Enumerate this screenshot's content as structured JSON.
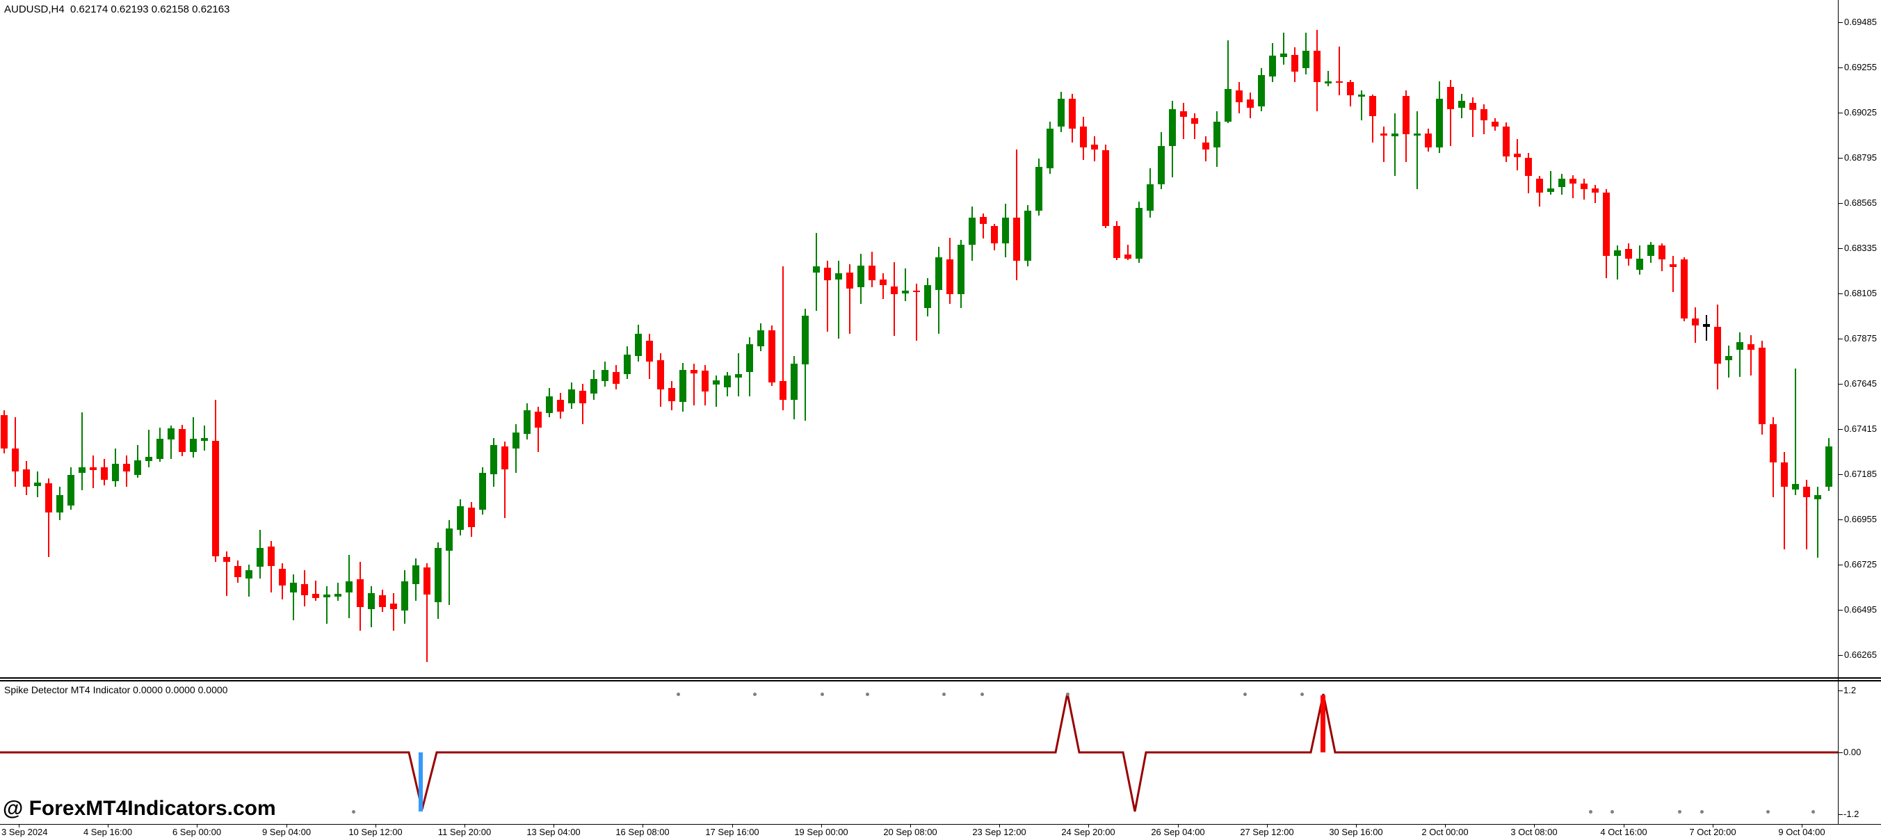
{
  "header": {
    "symbol_title": "AUDUSD,H4  0.62174 0.62193 0.62158 0.62163"
  },
  "watermark": {
    "text": "@ ForexMT4Indicators.com"
  },
  "price_axis": {
    "labels": [
      "0.69485",
      "0.69255",
      "0.69025",
      "0.68795",
      "0.68565",
      "0.68335",
      "0.68105",
      "0.67875",
      "0.67645",
      "0.67415",
      "0.67185",
      "0.66955",
      "0.66725",
      "0.66495",
      "0.66265"
    ]
  },
  "time_axis": {
    "labels": [
      "3 Sep 2024",
      "4 Sep 16:00",
      "6 Sep 00:00",
      "9 Sep 04:00",
      "10 Sep 12:00",
      "11 Sep 20:00",
      "13 Sep 04:00",
      "16 Sep 08:00",
      "17 Sep 16:00",
      "19 Sep 00:00",
      "20 Sep 08:00",
      "23 Sep 12:00",
      "24 Sep 20:00",
      "26 Sep 04:00",
      "27 Sep 12:00",
      "30 Sep 16:00",
      "2 Oct 00:00",
      "3 Oct 08:00",
      "4 Oct 16:00",
      "7 Oct 20:00",
      "9 Oct 04:00"
    ]
  },
  "indicator_pane": {
    "title": "Spike Detector MT4 Indicator 0.0000 0.0000 0.0000",
    "axis_labels": [
      {
        "text": "1.2",
        "value": 1.2
      },
      {
        "text": "0.00",
        "value": 0.0
      },
      {
        "text": "-1.2",
        "value": -1.2
      }
    ]
  },
  "chart_data": {
    "type": "candlestick",
    "title": "AUDUSD H4 with Spike Detector MT4 Indicator",
    "symbol": "AUDUSD",
    "timeframe": "H4",
    "quote": {
      "open": "0.62174",
      "high": "0.62193",
      "low": "0.62158",
      "close": "0.62163"
    },
    "ylim": [
      0.66265,
      0.69485
    ],
    "grid": false,
    "colors": {
      "up": "#008000",
      "down": "#FF0000",
      "neutral": "#000000",
      "spike_line": "#990000",
      "buy_marker": "#3399FF",
      "sell_marker": "#FF0000",
      "dot": "#808080"
    },
    "bars": [
      [
        0.67487,
        0.67511,
        0.67292,
        0.67317,
        "r"
      ],
      [
        0.67317,
        0.67476,
        0.67122,
        0.672,
        "r"
      ],
      [
        0.6721,
        0.67253,
        0.6708,
        0.67122,
        "r"
      ],
      [
        0.67126,
        0.672,
        0.67069,
        0.67143,
        "g"
      ],
      [
        0.6714,
        0.67165,
        0.66764,
        0.66991,
        "r"
      ],
      [
        0.66991,
        0.67122,
        0.66952,
        0.6708,
        "g"
      ],
      [
        0.67026,
        0.67221,
        0.67005,
        0.67182,
        "g"
      ],
      [
        0.67193,
        0.67501,
        0.67104,
        0.67221,
        "g"
      ],
      [
        0.67221,
        0.67281,
        0.67115,
        0.67207,
        "r"
      ],
      [
        0.67221,
        0.67264,
        0.67129,
        0.67157,
        "r"
      ],
      [
        0.6715,
        0.67317,
        0.67122,
        0.67239,
        "g"
      ],
      [
        0.67239,
        0.67281,
        0.67122,
        0.672,
        "r"
      ],
      [
        0.67182,
        0.67334,
        0.67168,
        0.67257,
        "g"
      ],
      [
        0.67253,
        0.67412,
        0.67221,
        0.67274,
        "g"
      ],
      [
        0.67264,
        0.67423,
        0.67249,
        0.67366,
        "g"
      ],
      [
        0.67363,
        0.67434,
        0.67264,
        0.67419,
        "g"
      ],
      [
        0.67416,
        0.67437,
        0.67278,
        0.67299,
        "r"
      ],
      [
        0.67299,
        0.67476,
        0.67271,
        0.67366,
        "g"
      ],
      [
        0.67356,
        0.67434,
        0.67306,
        0.6737,
        "g"
      ],
      [
        0.67356,
        0.67563,
        0.6674,
        0.66768,
        "r"
      ],
      [
        0.66764,
        0.66793,
        0.66566,
        0.6674,
        "r"
      ],
      [
        0.66718,
        0.66747,
        0.66633,
        0.66662,
        "r"
      ],
      [
        0.66655,
        0.66726,
        0.66563,
        0.66697,
        "g"
      ],
      [
        0.66715,
        0.66903,
        0.66655,
        0.6681,
        "g"
      ],
      [
        0.66818,
        0.66846,
        0.66584,
        0.66718,
        "r"
      ],
      [
        0.66704,
        0.66733,
        0.66549,
        0.66619,
        "r"
      ],
      [
        0.66584,
        0.66676,
        0.66442,
        0.66633,
        "g"
      ],
      [
        0.66626,
        0.66697,
        0.66513,
        0.6657,
        "r"
      ],
      [
        0.66577,
        0.66644,
        0.66541,
        0.66556,
        "r"
      ],
      [
        0.66559,
        0.66616,
        0.66425,
        0.66573,
        "g"
      ],
      [
        0.66563,
        0.66633,
        0.66541,
        0.66577,
        "g"
      ],
      [
        0.66584,
        0.66775,
        0.66453,
        0.66641,
        "g"
      ],
      [
        0.66651,
        0.6674,
        0.66389,
        0.6651,
        "r"
      ],
      [
        0.66499,
        0.66616,
        0.66407,
        0.6658,
        "g"
      ],
      [
        0.6657,
        0.66598,
        0.66485,
        0.6651,
        "r"
      ],
      [
        0.66527,
        0.6658,
        0.66389,
        0.66499,
        "r"
      ],
      [
        0.66492,
        0.66697,
        0.66425,
        0.66641,
        "g"
      ],
      [
        0.66626,
        0.66757,
        0.66541,
        0.66722,
        "g"
      ],
      [
        0.66711,
        0.66733,
        0.6623,
        0.66573,
        "r"
      ],
      [
        0.66534,
        0.66839,
        0.66449,
        0.6681,
        "g"
      ],
      [
        0.66796,
        0.66952,
        0.6652,
        0.6691,
        "g"
      ],
      [
        0.66903,
        0.67058,
        0.66874,
        0.67023,
        "g"
      ],
      [
        0.67016,
        0.67044,
        0.66867,
        0.66917,
        "r"
      ],
      [
        0.67005,
        0.67221,
        0.6698,
        0.67193,
        "g"
      ],
      [
        0.67186,
        0.6737,
        0.67122,
        0.67334,
        "g"
      ],
      [
        0.67327,
        0.67352,
        0.66963,
        0.6721,
        "r"
      ],
      [
        0.67317,
        0.67441,
        0.67193,
        0.67398,
        "g"
      ],
      [
        0.67391,
        0.67547,
        0.67363,
        0.67511,
        "g"
      ],
      [
        0.67504,
        0.67529,
        0.67299,
        0.67423,
        "r"
      ],
      [
        0.67497,
        0.67625,
        0.67476,
        0.67582,
        "g"
      ],
      [
        0.67564,
        0.676,
        0.67469,
        0.67504,
        "r"
      ],
      [
        0.67547,
        0.67653,
        0.67518,
        0.67618,
        "g"
      ],
      [
        0.67611,
        0.67646,
        0.67441,
        0.67547,
        "r"
      ],
      [
        0.67596,
        0.67717,
        0.67564,
        0.67671,
        "g"
      ],
      [
        0.6766,
        0.67759,
        0.67632,
        0.67717,
        "g"
      ],
      [
        0.67706,
        0.67741,
        0.67618,
        0.67646,
        "r"
      ],
      [
        0.67695,
        0.67837,
        0.67671,
        0.67795,
        "g"
      ],
      [
        0.67787,
        0.67947,
        0.67759,
        0.67901,
        "g"
      ],
      [
        0.67865,
        0.67901,
        0.67671,
        0.67759,
        "r"
      ],
      [
        0.67766,
        0.67802,
        0.67529,
        0.67618,
        "r"
      ],
      [
        0.67625,
        0.6766,
        0.67511,
        0.67557,
        "r"
      ],
      [
        0.67554,
        0.67752,
        0.67504,
        0.67717,
        "g"
      ],
      [
        0.67717,
        0.67749,
        0.67536,
        0.67699,
        "r"
      ],
      [
        0.67713,
        0.67741,
        0.67536,
        0.67607,
        "r"
      ],
      [
        0.67642,
        0.67688,
        0.67529,
        0.67664,
        "g"
      ],
      [
        0.67628,
        0.67706,
        0.67582,
        0.67688,
        "g"
      ],
      [
        0.67678,
        0.67802,
        0.67582,
        0.67695,
        "g"
      ],
      [
        0.67706,
        0.67883,
        0.67582,
        0.67848,
        "g"
      ],
      [
        0.67837,
        0.67954,
        0.67812,
        0.67918,
        "g"
      ],
      [
        0.67918,
        0.67943,
        0.67635,
        0.67653,
        "r"
      ],
      [
        0.6766,
        0.68244,
        0.67511,
        0.67564,
        "r"
      ],
      [
        0.67564,
        0.67787,
        0.67465,
        0.67749,
        "g"
      ],
      [
        0.67746,
        0.68028,
        0.67458,
        0.67993,
        "g"
      ],
      [
        0.68212,
        0.68414,
        0.68017,
        0.68244,
        "g"
      ],
      [
        0.68237,
        0.68273,
        0.67911,
        0.68173,
        "r"
      ],
      [
        0.68177,
        0.68273,
        0.67876,
        0.68209,
        "g"
      ],
      [
        0.68212,
        0.68255,
        0.67901,
        0.68131,
        "r"
      ],
      [
        0.68138,
        0.68308,
        0.68053,
        0.68248,
        "g"
      ],
      [
        0.68248,
        0.68318,
        0.68138,
        0.68173,
        "r"
      ],
      [
        0.68177,
        0.68209,
        0.68078,
        0.68149,
        "r"
      ],
      [
        0.68142,
        0.68265,
        0.6789,
        0.68103,
        "r"
      ],
      [
        0.68106,
        0.68233,
        0.68067,
        0.6812,
        "g"
      ],
      [
        0.6812,
        0.68156,
        0.67865,
        0.68113,
        "r"
      ],
      [
        0.68032,
        0.68184,
        0.67989,
        0.68149,
        "g"
      ],
      [
        0.68124,
        0.68343,
        0.67901,
        0.6829,
        "g"
      ],
      [
        0.6828,
        0.68389,
        0.68053,
        0.68103,
        "r"
      ],
      [
        0.68103,
        0.68379,
        0.68032,
        0.68354,
        "g"
      ],
      [
        0.68354,
        0.68549,
        0.68273,
        0.68492,
        "g"
      ],
      [
        0.68496,
        0.68513,
        0.68386,
        0.6846,
        "r"
      ],
      [
        0.6845,
        0.6846,
        0.68326,
        0.68361,
        "r"
      ],
      [
        0.68361,
        0.68563,
        0.6829,
        0.68492,
        "g"
      ],
      [
        0.68492,
        0.68839,
        0.68173,
        0.68273,
        "r"
      ],
      [
        0.68273,
        0.68556,
        0.68244,
        0.68527,
        "g"
      ],
      [
        0.68527,
        0.68793,
        0.68503,
        0.6875,
        "g"
      ],
      [
        0.68743,
        0.68981,
        0.68715,
        0.68945,
        "g"
      ],
      [
        0.68956,
        0.69133,
        0.68927,
        0.69097,
        "g"
      ],
      [
        0.69097,
        0.69122,
        0.68874,
        0.68945,
        "r"
      ],
      [
        0.68956,
        0.69005,
        0.68786,
        0.6885,
        "r"
      ],
      [
        0.68864,
        0.68906,
        0.68779,
        0.68839,
        "r"
      ],
      [
        0.68835,
        0.68864,
        0.68439,
        0.6845,
        "r"
      ],
      [
        0.6845,
        0.68474,
        0.68276,
        0.68287,
        "r"
      ],
      [
        0.68304,
        0.68354,
        0.68276,
        0.68283,
        "r"
      ],
      [
        0.68283,
        0.68573,
        0.68262,
        0.68541,
        "g"
      ],
      [
        0.68527,
        0.68743,
        0.68492,
        0.68662,
        "g"
      ],
      [
        0.68662,
        0.68927,
        0.68637,
        0.68857,
        "g"
      ],
      [
        0.68857,
        0.69087,
        0.68697,
        0.69044,
        "g"
      ],
      [
        0.69034,
        0.69076,
        0.68892,
        0.69005,
        "r"
      ],
      [
        0.68998,
        0.69023,
        0.68892,
        0.6897,
        "r"
      ],
      [
        0.68874,
        0.68906,
        0.68779,
        0.68839,
        "r"
      ],
      [
        0.6885,
        0.69034,
        0.6875,
        0.68981,
        "g"
      ],
      [
        0.68981,
        0.69395,
        0.68973,
        0.69147,
        "g"
      ],
      [
        0.6914,
        0.69182,
        0.69023,
        0.6908,
        "r"
      ],
      [
        0.69094,
        0.69129,
        0.68998,
        0.69051,
        "r"
      ],
      [
        0.69058,
        0.69253,
        0.69034,
        0.69218,
        "g"
      ],
      [
        0.69211,
        0.69381,
        0.69182,
        0.69317,
        "g"
      ],
      [
        0.6931,
        0.69434,
        0.69271,
        0.69327,
        "g"
      ],
      [
        0.6932,
        0.69359,
        0.69182,
        0.69235,
        "r"
      ],
      [
        0.69253,
        0.69434,
        0.69221,
        0.69342,
        "g"
      ],
      [
        0.69342,
        0.69448,
        0.69034,
        0.69182,
        "r"
      ],
      [
        0.69175,
        0.69239,
        0.69161,
        0.69186,
        "g"
      ],
      [
        0.69186,
        0.69363,
        0.69115,
        0.69179,
        "r"
      ],
      [
        0.69182,
        0.69193,
        0.69058,
        0.69115,
        "r"
      ],
      [
        0.69108,
        0.6914,
        0.68988,
        0.69119,
        "g"
      ],
      [
        0.69112,
        0.69119,
        0.68874,
        0.69009,
        "r"
      ],
      [
        0.6892,
        0.68956,
        0.68775,
        0.6891,
        "r"
      ],
      [
        0.68906,
        0.69023,
        0.68704,
        0.6892,
        "g"
      ],
      [
        0.69112,
        0.6914,
        0.68775,
        0.68917,
        "r"
      ],
      [
        0.6891,
        0.69034,
        0.68637,
        0.6892,
        "g"
      ],
      [
        0.6892,
        0.68945,
        0.68828,
        0.6885,
        "r"
      ],
      [
        0.6885,
        0.69186,
        0.68821,
        0.69097,
        "g"
      ],
      [
        0.69158,
        0.69193,
        0.68857,
        0.69044,
        "r"
      ],
      [
        0.69051,
        0.69122,
        0.68998,
        0.69087,
        "g"
      ],
      [
        0.69076,
        0.69104,
        0.68903,
        0.69041,
        "r"
      ],
      [
        0.69044,
        0.69069,
        0.68917,
        0.68988,
        "r"
      ],
      [
        0.68981,
        0.68998,
        0.68934,
        0.68956,
        "r"
      ],
      [
        0.68956,
        0.68977,
        0.68775,
        0.68804,
        "r"
      ],
      [
        0.68818,
        0.68892,
        0.68733,
        0.688,
        "r"
      ],
      [
        0.68796,
        0.68821,
        0.68616,
        0.68704,
        "r"
      ],
      [
        0.6869,
        0.68704,
        0.68549,
        0.68619,
        "r"
      ],
      [
        0.68623,
        0.68729,
        0.68609,
        0.68641,
        "g"
      ],
      [
        0.68648,
        0.68715,
        0.68609,
        0.6869,
        "g"
      ],
      [
        0.6869,
        0.68708,
        0.68591,
        0.68665,
        "r"
      ],
      [
        0.68665,
        0.6869,
        0.68584,
        0.68637,
        "r"
      ],
      [
        0.68641,
        0.68658,
        0.68566,
        0.68619,
        "r"
      ],
      [
        0.68619,
        0.68637,
        0.68184,
        0.68297,
        "r"
      ],
      [
        0.68297,
        0.6835,
        0.68177,
        0.68326,
        "g"
      ],
      [
        0.68333,
        0.68361,
        0.68248,
        0.68283,
        "r"
      ],
      [
        0.68226,
        0.6835,
        0.68202,
        0.68283,
        "g"
      ],
      [
        0.68297,
        0.68368,
        0.68262,
        0.68354,
        "g"
      ],
      [
        0.6835,
        0.68361,
        0.68219,
        0.6828,
        "r"
      ],
      [
        0.68255,
        0.68297,
        0.68113,
        0.68241,
        "r"
      ],
      [
        0.6828,
        0.6829,
        0.67965,
        0.67979,
        "r"
      ],
      [
        0.67979,
        0.68035,
        0.67855,
        0.67943,
        "r"
      ],
      [
        0.6795,
        0.67996,
        0.67865,
        0.67936,
        "k"
      ],
      [
        0.67936,
        0.68049,
        0.67618,
        0.67749,
        "r"
      ],
      [
        0.67766,
        0.67841,
        0.67678,
        0.67787,
        "g"
      ],
      [
        0.67819,
        0.67907,
        0.67681,
        0.67858,
        "g"
      ],
      [
        0.67848,
        0.67894,
        0.67688,
        0.67819,
        "r"
      ],
      [
        0.6783,
        0.67865,
        0.67388,
        0.6744,
        "r"
      ],
      [
        0.6744,
        0.67476,
        0.67069,
        0.67246,
        "r"
      ],
      [
        0.67246,
        0.67299,
        0.66803,
        0.67122,
        "r"
      ],
      [
        0.67108,
        0.67724,
        0.67079,
        0.67136,
        "g"
      ],
      [
        0.67122,
        0.67157,
        0.66803,
        0.67069,
        "r"
      ],
      [
        0.67058,
        0.67122,
        0.6676,
        0.67079,
        "g"
      ],
      [
        0.67122,
        0.6737,
        0.671,
        0.67327,
        "g"
      ]
    ],
    "indicator": {
      "name": "Spike Detector MT4 Indicator",
      "current_values": "0.0000 0.0000 0.0000",
      "ylim": [
        -1.2,
        1.2
      ],
      "zero_level": 0.0,
      "line": [
        [
          0,
          0
        ],
        [
          588,
          0
        ],
        [
          607,
          -1.1
        ],
        [
          628,
          0
        ],
        [
          1518,
          0
        ],
        [
          1535,
          1.15
        ],
        [
          1552,
          0
        ],
        [
          1615,
          0
        ],
        [
          1632,
          -1.15
        ],
        [
          1648,
          0
        ],
        [
          1885,
          0
        ],
        [
          1903,
          1.13
        ],
        [
          1920,
          0
        ],
        [
          2643,
          0
        ]
      ],
      "marker_bars": [
        {
          "x": 602,
          "w": 6,
          "from": 0,
          "to": -1.15,
          "color": "#3399FF",
          "name": "buy-spike-marker"
        },
        {
          "x": 1899,
          "w": 7,
          "from": 0,
          "to": 1.1,
          "color": "#FF0000",
          "name": "sell-spike-marker"
        }
      ],
      "dots_top": {
        "value": 1.13,
        "x": [
          975,
          1085,
          1182,
          1247,
          1357,
          1412,
          1535,
          1790,
          1872
        ]
      },
      "dots_bottom": {
        "value": -1.15,
        "x": [
          508,
          2287,
          2318,
          2415,
          2447,
          2542,
          2607
        ]
      }
    }
  }
}
